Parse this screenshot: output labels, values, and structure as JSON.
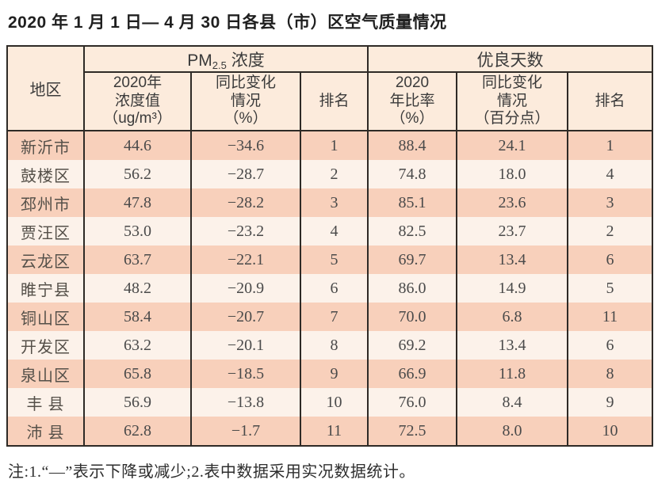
{
  "page": {
    "title": "2020 年 1 月 1 日— 4 月 30 日各县（市）区空气质量情况",
    "footnote": "注:1.“—”表示下降或减少;2.表中数据采用实况数据统计。"
  },
  "colors": {
    "header_bg": "#fcebdc",
    "row_odd_bg": "#f8d0bb",
    "row_even_bg": "#fcf2ea",
    "border": "#2e2a26",
    "text": "#4a4a4a"
  },
  "table": {
    "region_header": "地区",
    "group_pm": {
      "prefix": "PM",
      "sub": "2.5",
      "suffix": " 浓度"
    },
    "group_good": "优良天数",
    "subheaders": {
      "pm_value": "2020年\n浓度值\n（ug/m³）",
      "pm_change": "同比变化\n情况\n（%）",
      "pm_rank": "排名",
      "good_rate": "2020\n年比率\n（%）",
      "good_change": "同比变化\n情况\n（百分点）",
      "good_rank": "排名"
    },
    "rows": [
      {
        "region": "新沂市",
        "pm_value": "44.6",
        "pm_change": "−34.6",
        "pm_rank": "1",
        "good_rate": "88.4",
        "good_change": "24.1",
        "good_rank": "1"
      },
      {
        "region": "鼓楼区",
        "pm_value": "56.2",
        "pm_change": "−28.7",
        "pm_rank": "2",
        "good_rate": "74.8",
        "good_change": "18.0",
        "good_rank": "4"
      },
      {
        "region": "邳州市",
        "pm_value": "47.8",
        "pm_change": "−28.2",
        "pm_rank": "3",
        "good_rate": "85.1",
        "good_change": "23.6",
        "good_rank": "3"
      },
      {
        "region": "贾汪区",
        "pm_value": "53.0",
        "pm_change": "−23.2",
        "pm_rank": "4",
        "good_rate": "82.5",
        "good_change": "23.7",
        "good_rank": "2"
      },
      {
        "region": "云龙区",
        "pm_value": "63.7",
        "pm_change": "−22.1",
        "pm_rank": "5",
        "good_rate": "69.7",
        "good_change": "13.4",
        "good_rank": "6"
      },
      {
        "region": "睢宁县",
        "pm_value": "48.2",
        "pm_change": "−20.9",
        "pm_rank": "6",
        "good_rate": "86.0",
        "good_change": "14.9",
        "good_rank": "5"
      },
      {
        "region": "铜山区",
        "pm_value": "58.4",
        "pm_change": "−20.7",
        "pm_rank": "7",
        "good_rate": "70.0",
        "good_change": "6.8",
        "good_rank": "11"
      },
      {
        "region": "开发区",
        "pm_value": "63.2",
        "pm_change": "−20.1",
        "pm_rank": "8",
        "good_rate": "69.2",
        "good_change": "13.4",
        "good_rank": "6"
      },
      {
        "region": "泉山区",
        "pm_value": "65.8",
        "pm_change": "−18.5",
        "pm_rank": "9",
        "good_rate": "66.9",
        "good_change": "11.8",
        "good_rank": "8"
      },
      {
        "region": "丰 县",
        "pm_value": "56.9",
        "pm_change": "−13.8",
        "pm_rank": "10",
        "good_rate": "76.0",
        "good_change": "8.4",
        "good_rank": "9"
      },
      {
        "region": "沛 县",
        "pm_value": "62.8",
        "pm_change": "−1.7",
        "pm_rank": "11",
        "good_rate": "72.5",
        "good_change": "8.0",
        "good_rank": "10"
      }
    ]
  }
}
